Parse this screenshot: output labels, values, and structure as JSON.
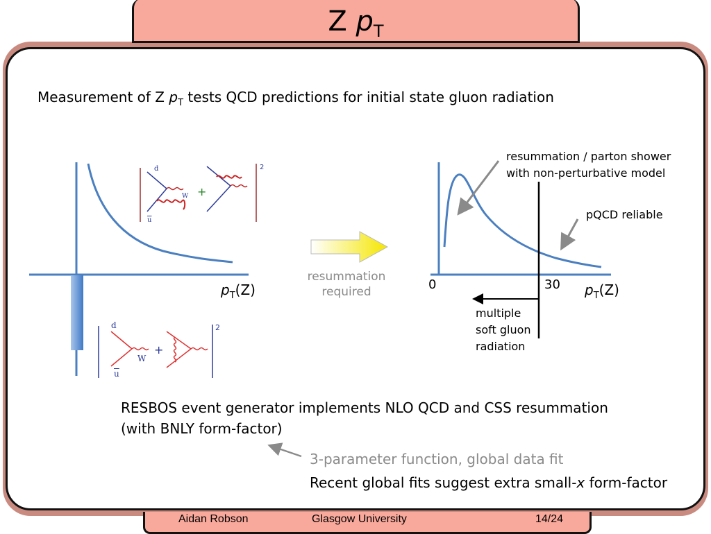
{
  "slide": {
    "title_main": "Z ",
    "title_p": "p",
    "title_sub": "T"
  },
  "intro": {
    "pre": "Measurement of Z ",
    "p": "p",
    "sub": "T",
    "post": " tests QCD predictions for initial state gluon radiation"
  },
  "left_plot": {
    "x_p": "p",
    "x_sub": "T",
    "x_post": "(Z)"
  },
  "arrow_label": [
    "resummation",
    "required"
  ],
  "right_plot": {
    "tick_0": "0",
    "tick_30": "30",
    "x_p": "p",
    "x_sub": "T",
    "x_post": "(Z)",
    "annotation_resummation": [
      "resummation / parton shower",
      "with non-perturbative model"
    ],
    "annotation_pqcd": "pQCD reliable",
    "annotation_soft": [
      "multiple",
      "soft gluon",
      "radiation"
    ]
  },
  "feynman": {
    "top_d": "d",
    "top_u": "u",
    "top_w": "W",
    "top_sq": "2",
    "bot_d": "d",
    "bot_u": "u",
    "bot_w": "W",
    "bot_sq": "2"
  },
  "body": {
    "line1": "RESBOS event generator implements NLO QCD and CSS resummation",
    "line2": "(with BNLY form-factor)",
    "note_gray": "3-parameter function, global data fit",
    "note_pre": "Recent global fits suggest extra small-",
    "note_x": "x",
    "note_post": " form-factor"
  },
  "footer": {
    "author": "Aidan Robson",
    "institution": "Glasgow University",
    "page": "14/24"
  },
  "colors": {
    "frame_accent": "#f9a99c",
    "curve_blue": "#4a7fc0",
    "gray_text": "#8a8a8a"
  }
}
